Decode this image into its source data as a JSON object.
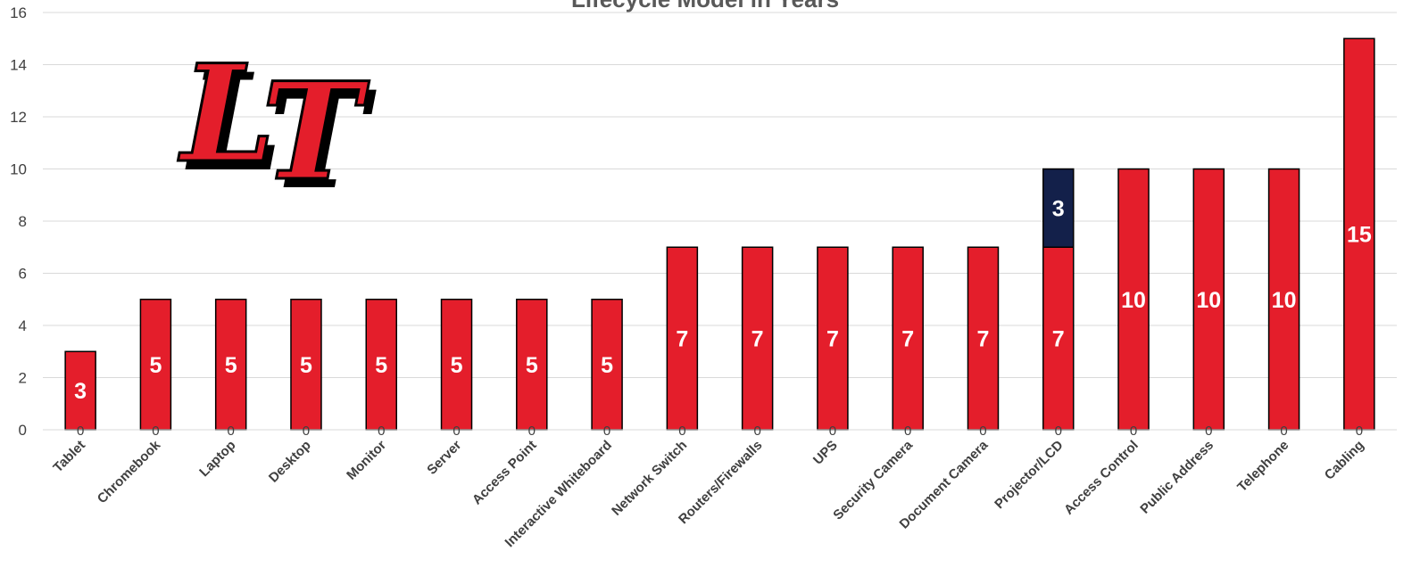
{
  "chart_data": {
    "type": "bar",
    "stacked": true,
    "title": "Lifecycle Model in Years",
    "xlabel": "",
    "ylabel": "",
    "ylim": [
      0,
      16
    ],
    "yticks": [
      0,
      2,
      4,
      6,
      8,
      10,
      12,
      14,
      16
    ],
    "grid": true,
    "categories": [
      "Tablet",
      "Chromebook",
      "Laptop",
      "Desktop",
      "Monitor",
      "Server",
      "Access Point",
      "Interactive Whiteboard",
      "Network Switch",
      "Routers/Firewalls",
      "UPS",
      "Security Camera",
      "Document Camera",
      "Projector/LCD",
      "Access Control",
      "Public Address",
      "Telephone",
      "Cabling"
    ],
    "series": [
      {
        "values": [
          3,
          5,
          5,
          5,
          5,
          5,
          5,
          5,
          7,
          7,
          7,
          7,
          7,
          7,
          10,
          10,
          10,
          15
        ],
        "color": "#e41e2b"
      },
      {
        "values": [
          0,
          0,
          0,
          0,
          0,
          0,
          0,
          0,
          0,
          0,
          0,
          0,
          0,
          3,
          0,
          0,
          0,
          0
        ],
        "color": "#13204a"
      }
    ],
    "zero_labels": [
      "0",
      "0",
      "0",
      "0",
      "0",
      "0",
      "0",
      "0",
      "0",
      "0",
      "0",
      "0",
      "0",
      "0",
      "0",
      "0",
      "0",
      "0"
    ]
  },
  "logo": {
    "text": "LT",
    "fill": "#e41e2b",
    "outline": "#000000"
  }
}
